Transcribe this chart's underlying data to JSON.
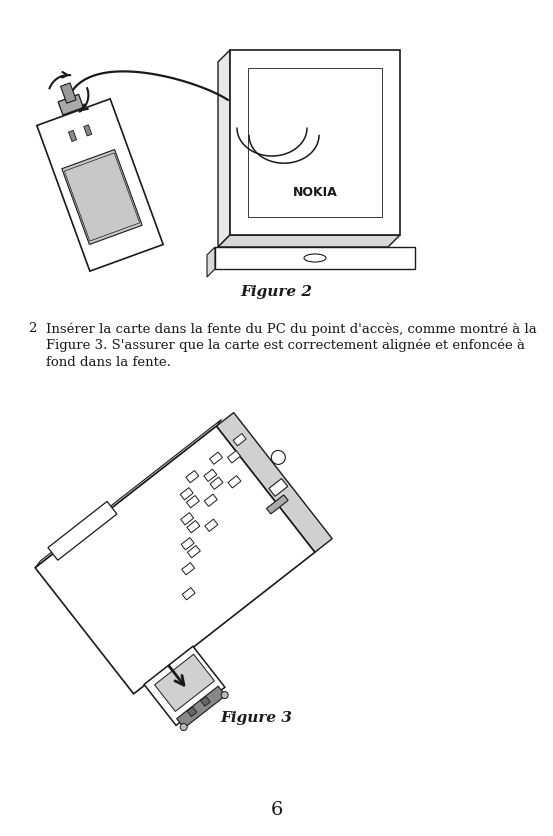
{
  "background_color": "#ffffff",
  "page_number": "6",
  "figure2_caption": "Figure 2",
  "figure3_caption": "Figure 3",
  "step_number": "2",
  "step_text_line1": "Insérer la carte dans la fente du PC du point d'accès, comme montré à la",
  "step_text_line2": "Figure 3. S'assurer que la carte est correctement alignée et enfoncée à",
  "step_text_line3": "fond dans la fente.",
  "caption_fontsize": 11,
  "body_fontsize": 9.5,
  "page_num_fontsize": 14,
  "lc": "#1a1a1a",
  "lw": 1.0
}
